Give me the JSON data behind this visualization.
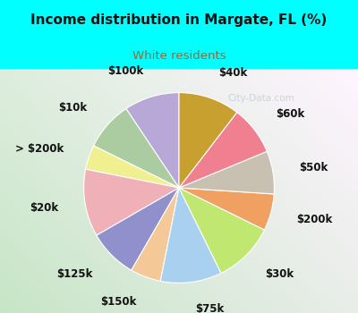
{
  "title": "Income distribution in Margate, FL (%)",
  "subtitle": "White residents",
  "title_color": "#111111",
  "subtitle_color": "#996633",
  "bg_cyan": "#00ffff",
  "watermark": "City-Data.com",
  "labels": [
    "$100k",
    "$10k",
    "> $200k",
    "$20k",
    "$125k",
    "$150k",
    "$75k",
    "$30k",
    "$200k",
    "$50k",
    "$60k",
    "$40k"
  ],
  "values": [
    9,
    8,
    4,
    11,
    8,
    5,
    10,
    10,
    6,
    7,
    8,
    10
  ],
  "colors": [
    "#b8a8d8",
    "#aacca0",
    "#f0f090",
    "#f0b0b8",
    "#9090cc",
    "#f5c898",
    "#aad0f0",
    "#c0e870",
    "#f0a060",
    "#c8c0b0",
    "#f08090",
    "#c8a030"
  ],
  "startangle": 90,
  "label_fontsize": 8.5,
  "labeldistance": 1.28
}
